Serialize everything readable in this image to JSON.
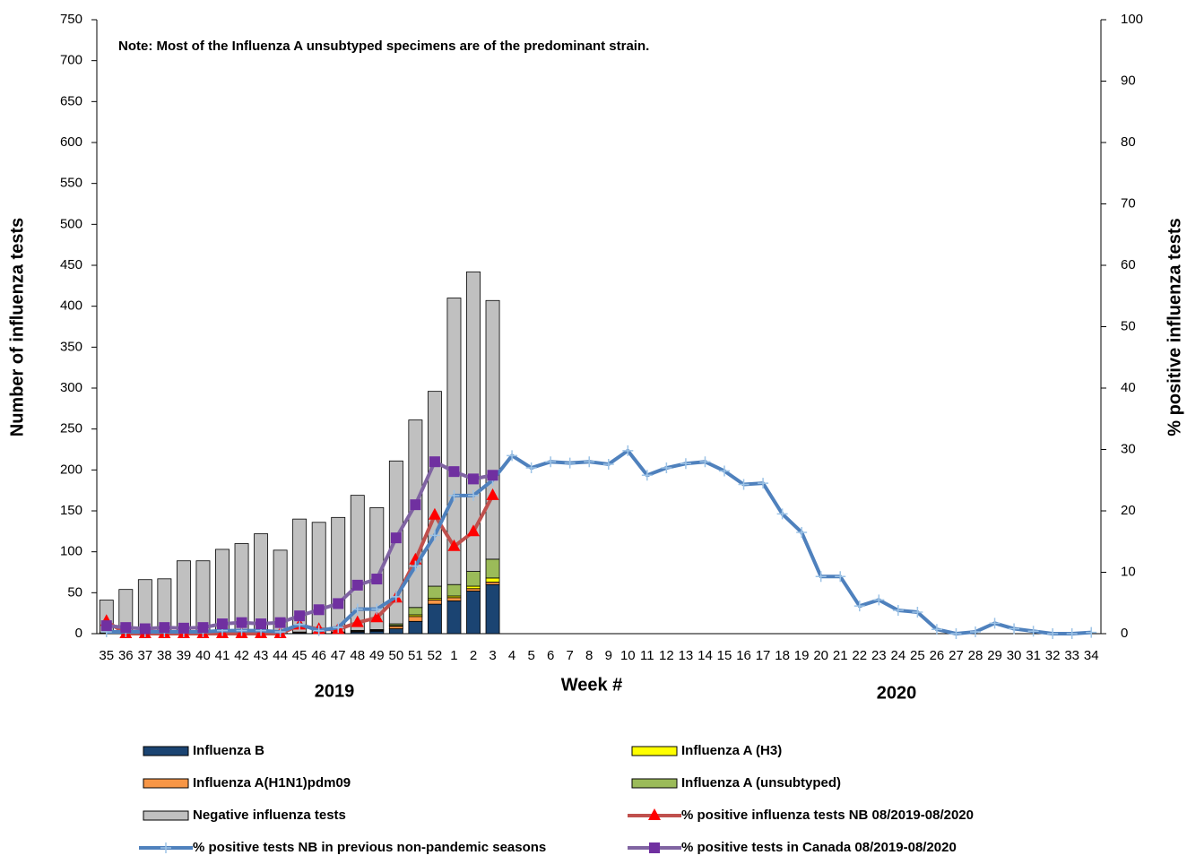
{
  "chart_data": {
    "type": "bar",
    "stacked": true,
    "annotation": "Note: Most of the  Influenza A unsubtyped specimens are of the predominant strain.",
    "y_label": "Number of influenza tests",
    "y2_label": "% positive influenza tests",
    "x_label": "Week #",
    "year_labels": [
      "2019",
      "2020"
    ],
    "categories": [
      "35",
      "36",
      "37",
      "38",
      "39",
      "40",
      "41",
      "42",
      "43",
      "44",
      "45",
      "46",
      "47",
      "48",
      "49",
      "50",
      "51",
      "52",
      "1",
      "2",
      "3",
      "4",
      "5",
      "6",
      "7",
      "8",
      "9",
      "10",
      "11",
      "12",
      "13",
      "14",
      "15",
      "16",
      "17",
      "18",
      "19",
      "20",
      "21",
      "22",
      "23",
      "24",
      "25",
      "26",
      "27",
      "28",
      "29",
      "30",
      "31",
      "32",
      "33",
      "34"
    ],
    "ylim": [
      0,
      750
    ],
    "yticks": [
      0,
      50,
      100,
      150,
      200,
      250,
      300,
      350,
      400,
      450,
      500,
      550,
      600,
      650,
      700,
      750
    ],
    "y2lim": [
      0,
      100
    ],
    "y2ticks": [
      0,
      10,
      20,
      30,
      40,
      50,
      60,
      70,
      80,
      90,
      100
    ],
    "series": [
      {
        "name": "Influenza B",
        "type": "bar",
        "color": "#1b4472",
        "values": [
          0,
          0,
          0,
          0,
          0,
          0,
          0,
          0,
          0,
          0,
          1,
          1,
          1,
          2,
          3,
          6,
          15,
          36,
          40,
          52,
          60,
          null,
          null,
          null,
          null,
          null,
          null,
          null,
          null,
          null,
          null,
          null,
          null,
          null,
          null,
          null,
          null,
          null,
          null,
          null,
          null,
          null,
          null,
          null,
          null,
          null,
          null,
          null,
          null,
          null,
          null,
          null
        ]
      },
      {
        "name": "Influenza A(H1N1)pdm09",
        "type": "bar",
        "color": "#f79646",
        "values": [
          0,
          0,
          0,
          0,
          0,
          0,
          0,
          0,
          0,
          0,
          1,
          0,
          0,
          1,
          1,
          3,
          6,
          5,
          4,
          3,
          3,
          null,
          null,
          null,
          null,
          null,
          null,
          null,
          null,
          null,
          null,
          null,
          null,
          null,
          null,
          null,
          null,
          null,
          null,
          null,
          null,
          null,
          null,
          null,
          null,
          null,
          null,
          null,
          null,
          null,
          null,
          null
        ]
      },
      {
        "name": "Influenza A (H3)",
        "type": "bar",
        "color": "#ffff00",
        "values": [
          0,
          0,
          0,
          0,
          0,
          0,
          0,
          0,
          0,
          0,
          0,
          0,
          0,
          0,
          0,
          1,
          2,
          2,
          2,
          3,
          5,
          null,
          null,
          null,
          null,
          null,
          null,
          null,
          null,
          null,
          null,
          null,
          null,
          null,
          null,
          null,
          null,
          null,
          null,
          null,
          null,
          null,
          null,
          null,
          null,
          null,
          null,
          null,
          null,
          null,
          null,
          null
        ]
      },
      {
        "name": "Influenza A (unsubtyped)",
        "type": "bar",
        "color": "#9bbb59",
        "values": [
          1,
          0,
          0,
          0,
          0,
          0,
          0,
          0,
          0,
          0,
          0,
          0,
          1,
          1,
          1,
          2,
          9,
          15,
          14,
          18,
          23,
          null,
          null,
          null,
          null,
          null,
          null,
          null,
          null,
          null,
          null,
          null,
          null,
          null,
          null,
          null,
          null,
          null,
          null,
          null,
          null,
          null,
          null,
          null,
          null,
          null,
          null,
          null,
          null,
          null,
          null,
          null
        ]
      },
      {
        "name": "Negative influenza tests",
        "type": "bar",
        "color": "#c0c0c0",
        "values": [
          40,
          54,
          66,
          67,
          89,
          89,
          103,
          110,
          122,
          102,
          138,
          135,
          140,
          165,
          149,
          199,
          229,
          238,
          350,
          366,
          316,
          null,
          null,
          null,
          null,
          null,
          null,
          null,
          null,
          null,
          null,
          null,
          null,
          null,
          null,
          null,
          null,
          null,
          null,
          null,
          null,
          null,
          null,
          null,
          null,
          null,
          null,
          null,
          null,
          null,
          null,
          null
        ]
      },
      {
        "name": "% positive influenza tests NB 08/2019-08/2020",
        "type": "line",
        "axis": "y2",
        "color": "#c0504d",
        "marker": "triangle",
        "marker_color": "#ff0000",
        "values": [
          2,
          0,
          0,
          0,
          0,
          0,
          0,
          0,
          0,
          0,
          1.4,
          0.7,
          0.7,
          1.8,
          2.6,
          5.8,
          12,
          19.3,
          14.2,
          16.6,
          22.5,
          null,
          null,
          null,
          null,
          null,
          null,
          null,
          null,
          null,
          null,
          null,
          null,
          null,
          null,
          null,
          null,
          null,
          null,
          null,
          null,
          null,
          null,
          null,
          null,
          null,
          null,
          null,
          null,
          null,
          null,
          null
        ]
      },
      {
        "name": "% positive tests NB in previous non-pandemic seasons",
        "type": "line",
        "axis": "y2",
        "color": "#4f81bd",
        "marker": "plus",
        "marker_color": "#9dc3e6",
        "values": [
          0.3,
          0.3,
          0.3,
          0.3,
          0.3,
          0.3,
          0.5,
          0.5,
          0.5,
          0.3,
          1.5,
          0.5,
          1,
          4,
          4,
          6,
          11,
          16,
          22.5,
          22.5,
          25,
          29,
          27,
          28,
          27.8,
          28,
          27.6,
          29.8,
          25.8,
          27,
          27.7,
          28,
          26.5,
          24.3,
          24.5,
          19.5,
          16.5,
          9.3,
          9.3,
          4.5,
          5.5,
          3.8,
          3.5,
          0.7,
          0,
          0.3,
          1.7,
          0.8,
          0.4,
          0,
          0,
          0.2
        ]
      },
      {
        "name": "% positive tests  in Canada 08/2019-08/2020",
        "type": "line",
        "axis": "y2",
        "color": "#8064a2",
        "marker": "square",
        "marker_color": "#7030a0",
        "values": [
          1.3,
          1,
          0.8,
          1,
          0.9,
          1,
          1.6,
          1.8,
          1.6,
          1.8,
          2.9,
          3.9,
          4.9,
          7.9,
          8.9,
          15.6,
          21,
          28,
          26.4,
          25.2,
          25.8,
          null,
          null,
          null,
          null,
          null,
          null,
          null,
          null,
          null,
          null,
          null,
          null,
          null,
          null,
          null,
          null,
          null,
          null,
          null,
          null,
          null,
          null,
          null,
          null,
          null,
          null,
          null,
          null,
          null,
          null,
          null
        ]
      }
    ]
  }
}
